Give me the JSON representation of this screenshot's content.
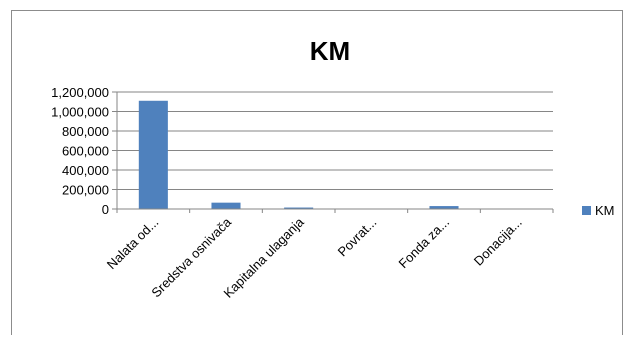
{
  "chart_data": {
    "type": "bar",
    "title": "KM",
    "xlabel": "",
    "ylabel": "",
    "categories": [
      "Nalata od...",
      "Sredstva osnivača",
      "Kapitalna ulaganja",
      "Povrat...",
      "Fonda za...",
      "Donacija..."
    ],
    "series": [
      {
        "name": "KM",
        "values": [
          1110000,
          65000,
          15000,
          0,
          30000,
          0
        ],
        "color": "#4f81bd"
      }
    ],
    "ylim": [
      0,
      1200000
    ],
    "yticks": [
      0,
      200000,
      400000,
      600000,
      800000,
      1000000,
      1200000
    ],
    "ytick_labels": [
      "0",
      "200,000",
      "400,000",
      "600,000",
      "800,000",
      "1,000,000",
      "1,200,000"
    ],
    "grid": true,
    "legend_position": "right"
  }
}
